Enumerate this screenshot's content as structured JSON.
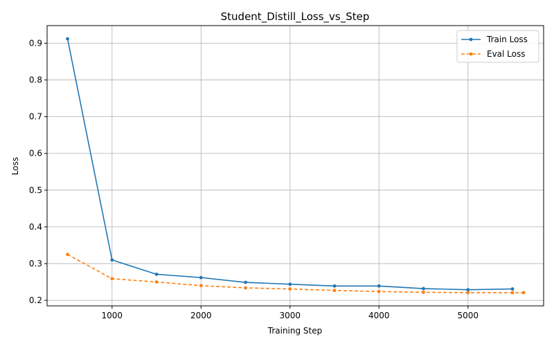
{
  "chart_data": {
    "type": "line",
    "title": "Student_Distill_Loss_vs_Step",
    "xlabel": "Training Step",
    "ylabel": "Loss",
    "xlim": [
      270,
      5850
    ],
    "ylim": [
      0.185,
      0.948
    ],
    "xticks": [
      1000,
      2000,
      3000,
      4000,
      5000
    ],
    "yticks": [
      0.2,
      0.3,
      0.4,
      0.5,
      0.6,
      0.7,
      0.8,
      0.9
    ],
    "grid": true,
    "legend_position": "top-right",
    "series": [
      {
        "name": "Train Loss",
        "color": "#1f77b4",
        "dash": "solid",
        "x": [
          500,
          1000,
          1500,
          2000,
          2500,
          3000,
          3500,
          4000,
          4500,
          5000,
          5500
        ],
        "y": [
          0.912,
          0.31,
          0.271,
          0.262,
          0.249,
          0.244,
          0.239,
          0.239,
          0.232,
          0.229,
          0.231
        ]
      },
      {
        "name": "Eval Loss",
        "color": "#ff7f0e",
        "dash": "dashed",
        "x": [
          500,
          1000,
          1500,
          2000,
          2500,
          3000,
          3500,
          4000,
          4500,
          5000,
          5500,
          5625
        ],
        "y": [
          0.325,
          0.259,
          0.25,
          0.24,
          0.234,
          0.231,
          0.227,
          0.224,
          0.222,
          0.221,
          0.221,
          0.221
        ]
      }
    ]
  }
}
